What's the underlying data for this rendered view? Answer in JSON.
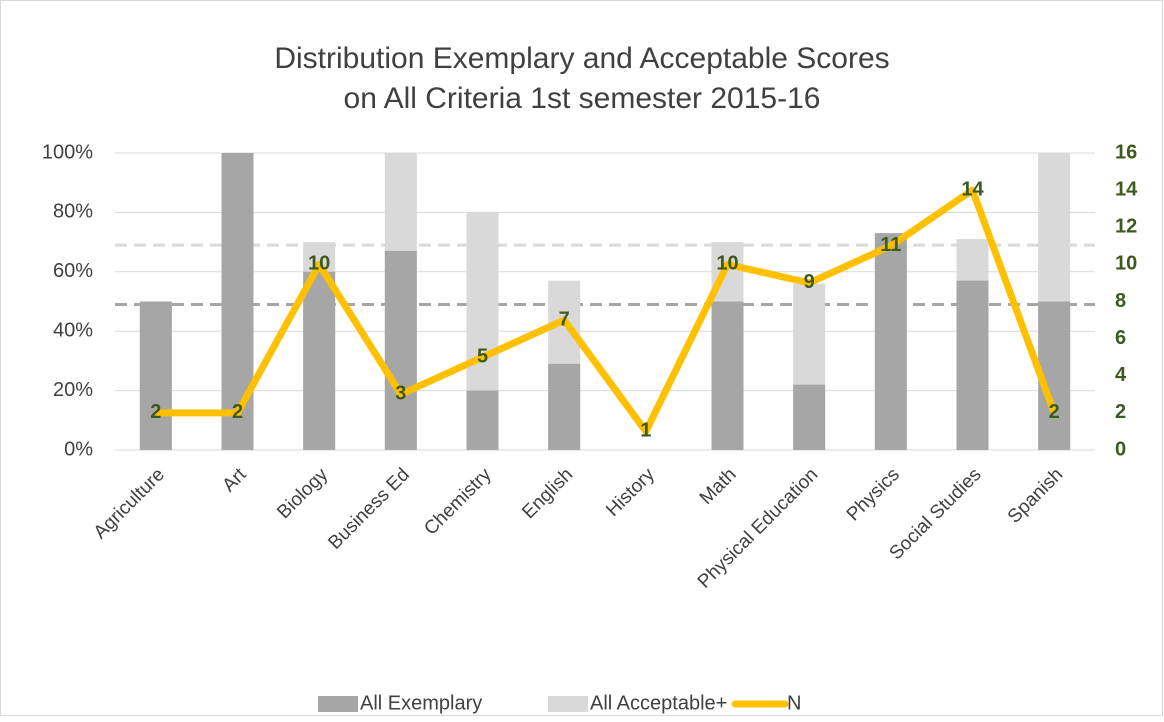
{
  "chart_data": {
    "type": "bar-line",
    "title": [
      "Distribution Exemplary and Acceptable Scores",
      "on All Criteria 1st semester 2015-16"
    ],
    "categories": [
      "Agriculture",
      "Art",
      "Biology",
      "Business Ed",
      "Chemistry",
      "English",
      "History",
      "Math",
      "Physical Education",
      "Physics",
      "Social Studies",
      "Spanish"
    ],
    "series": [
      {
        "name": "All Exemplary",
        "color": "#a6a6a6",
        "values": [
          50,
          100,
          60,
          67,
          20,
          29,
          0,
          50,
          22,
          73,
          57,
          50
        ]
      },
      {
        "name": "All Acceptable+",
        "color": "#d9d9d9",
        "values": [
          50,
          100,
          70,
          100,
          80,
          57,
          0,
          70,
          56,
          73,
          71,
          100
        ]
      },
      {
        "name": "N",
        "color": "#ffc000",
        "axis": "y2",
        "values": [
          2,
          2,
          10,
          3,
          5,
          7,
          1,
          10,
          9,
          11,
          14,
          2
        ]
      }
    ],
    "reference_lines": [
      {
        "value": 49,
        "color": "#a6a6a6"
      },
      {
        "value": 69,
        "color": "#d9d9d9"
      }
    ],
    "ylim": [
      0,
      100
    ],
    "yticks": [
      {
        "value": 0,
        "label": "0%"
      },
      {
        "value": 20,
        "label": "20%"
      },
      {
        "value": 40,
        "label": "40%"
      },
      {
        "value": 60,
        "label": "60%"
      },
      {
        "value": 80,
        "label": "80%"
      },
      {
        "value": 100,
        "label": "100%"
      }
    ],
    "y2lim": [
      0,
      16
    ],
    "y2ticks": [
      0,
      2,
      4,
      6,
      8,
      10,
      12,
      14,
      16
    ],
    "grid": true,
    "legend": "bottom"
  }
}
